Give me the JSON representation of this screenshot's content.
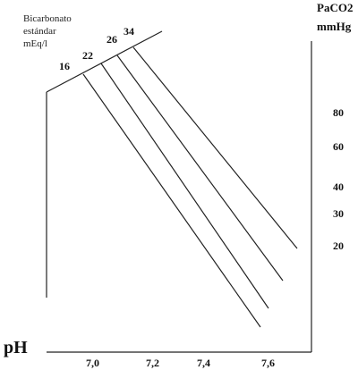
{
  "nomogram": {
    "bicarbonate_title": [
      "Bicarbonato",
      "estándar",
      "mEq/l"
    ],
    "bicarbonate_values": [
      "16",
      "22",
      "26",
      "34"
    ],
    "paco2_title": [
      "PaCO2",
      "mmHg"
    ],
    "paco2_values": [
      "80",
      "60",
      "40",
      "30",
      "20"
    ],
    "ph_title": "pH",
    "ph_values": [
      "7,0",
      "7,2",
      "7,4",
      "7,6"
    ]
  }
}
